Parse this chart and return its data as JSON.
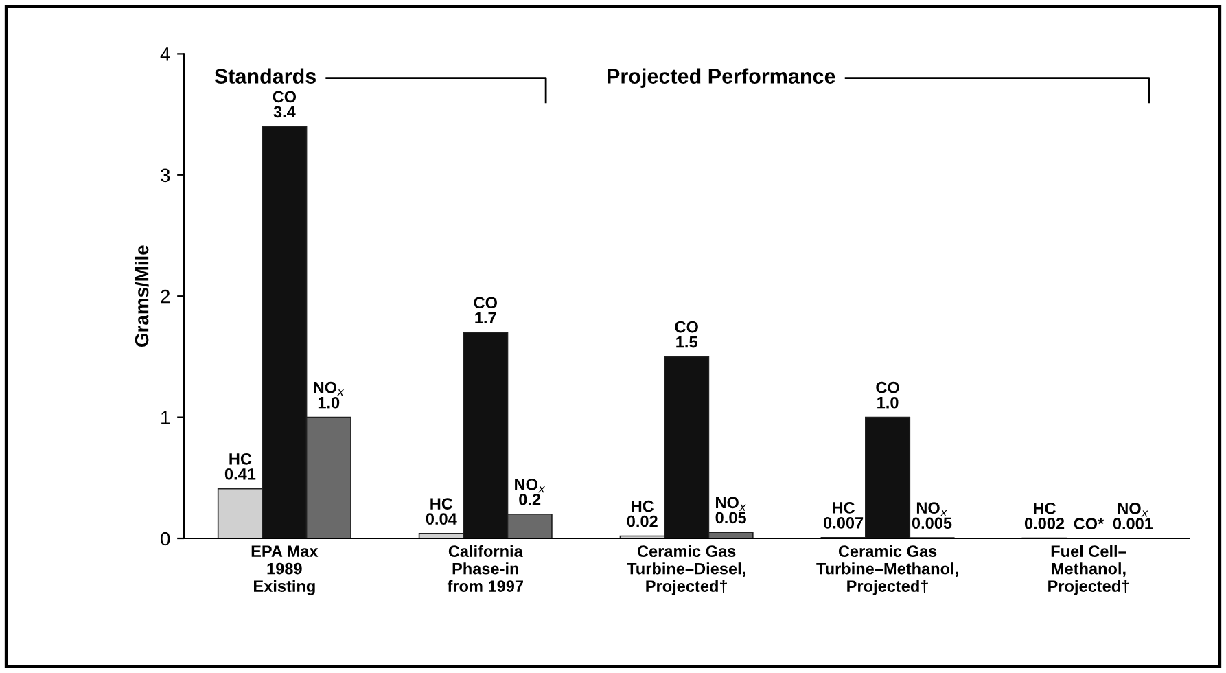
{
  "chart_data": {
    "type": "bar",
    "ylabel": "Grams/Mile",
    "categories": [
      "EPA Max\n1989\nExisting",
      "California\nPhase-in\nfrom 1997",
      "Ceramic Gas\nTurbine–Diesel,\nProjected†",
      "Ceramic Gas\nTurbine–Methanol,\nProjected†",
      "Fuel Cell–\nMethanol,\nProjected†"
    ],
    "series": [
      {
        "name": "HC",
        "color": "#d0d0d0",
        "values": [
          0.41,
          0.04,
          0.02,
          0.007,
          0.002
        ],
        "value_labels": [
          "0.41",
          "0.04",
          "0.02",
          "0.007",
          "0.002"
        ]
      },
      {
        "name": "CO",
        "color": "#111111",
        "values": [
          3.4,
          1.7,
          1.5,
          1.0,
          null
        ],
        "value_labels": [
          "3.4",
          "1.7",
          "1.5",
          "1.0",
          "*"
        ]
      },
      {
        "name": "NO$_{x}$",
        "color": "#6a6a6a",
        "values": [
          1.0,
          0.2,
          0.05,
          0.005,
          0.001
        ],
        "value_labels": [
          "1.0",
          "0.2",
          "0.05",
          "0.005",
          "0.001"
        ]
      }
    ],
    "annotations": [
      "Standards",
      "Projected Performance"
    ],
    "ylim": [
      0,
      4
    ],
    "yticks": [
      0,
      1,
      2,
      3,
      4
    ],
    "grid": false,
    "legend": false
  }
}
